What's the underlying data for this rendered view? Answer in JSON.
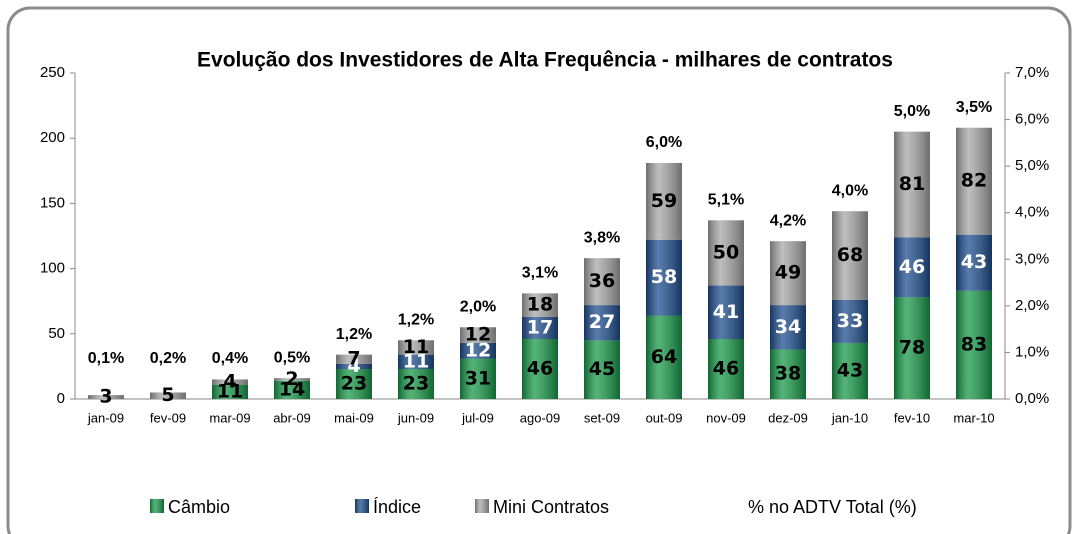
{
  "chart_data": {
    "type": "stacked_bar",
    "title": "Evolução dos Investidores de Alta Frequência - milhares de contratos",
    "categories": [
      "jan-09",
      "fev-09",
      "mar-09",
      "abr-09",
      "mai-09",
      "jun-09",
      "jul-09",
      "ago-09",
      "set-09",
      "out-09",
      "nov-09",
      "dez-09",
      "jan-10",
      "fev-10",
      "mar-10"
    ],
    "series": [
      {
        "name": "Câmbio",
        "color": "#1a9b4b",
        "values": [
          null,
          null,
          11,
          14,
          23,
          23,
          31,
          46,
          45,
          64,
          46,
          38,
          43,
          78,
          83
        ]
      },
      {
        "name": "Índice",
        "color": "#1f4f8f",
        "values": [
          null,
          null,
          null,
          null,
          4,
          11,
          12,
          17,
          27,
          58,
          41,
          34,
          33,
          46,
          43
        ]
      },
      {
        "name": "Mini Contratos",
        "color": "#a8a8a8",
        "values": [
          3,
          5,
          4,
          2,
          7,
          11,
          12,
          18,
          36,
          59,
          50,
          49,
          68,
          81,
          82
        ]
      },
      {
        "name": "% no ADTV Total (%)",
        "axis": "y2",
        "values": [
          0.1,
          0.2,
          0.4,
          0.5,
          1.2,
          1.2,
          2.0,
          3.1,
          3.8,
          6.0,
          5.1,
          4.2,
          4.0,
          5.0,
          3.5
        ],
        "value_labels": [
          "0,1%",
          "0,2%",
          "0,4%",
          "0,5%",
          "1,2%",
          "1,2%",
          "2,0%",
          "3,1%",
          "3,8%",
          "6,0%",
          "5,1%",
          "4,2%",
          "4,0%",
          "5,0%",
          "3,5%"
        ]
      }
    ],
    "ylim": [
      0,
      250
    ],
    "yticks": [
      0,
      50,
      100,
      150,
      200,
      250
    ],
    "y2lim": [
      0,
      7
    ],
    "y2ticks": [
      {
        "value": 0,
        "label": "0,0%"
      },
      {
        "value": 1,
        "label": "1,0%"
      },
      {
        "value": 2,
        "label": "2,0%"
      },
      {
        "value": 3,
        "label": "3,0%"
      },
      {
        "value": 4,
        "label": "4,0%"
      },
      {
        "value": 5,
        "label": "5,0%"
      },
      {
        "value": 6,
        "label": "6,0%"
      },
      {
        "value": 7,
        "label": "7,0%"
      }
    ],
    "legend": "bottom"
  }
}
